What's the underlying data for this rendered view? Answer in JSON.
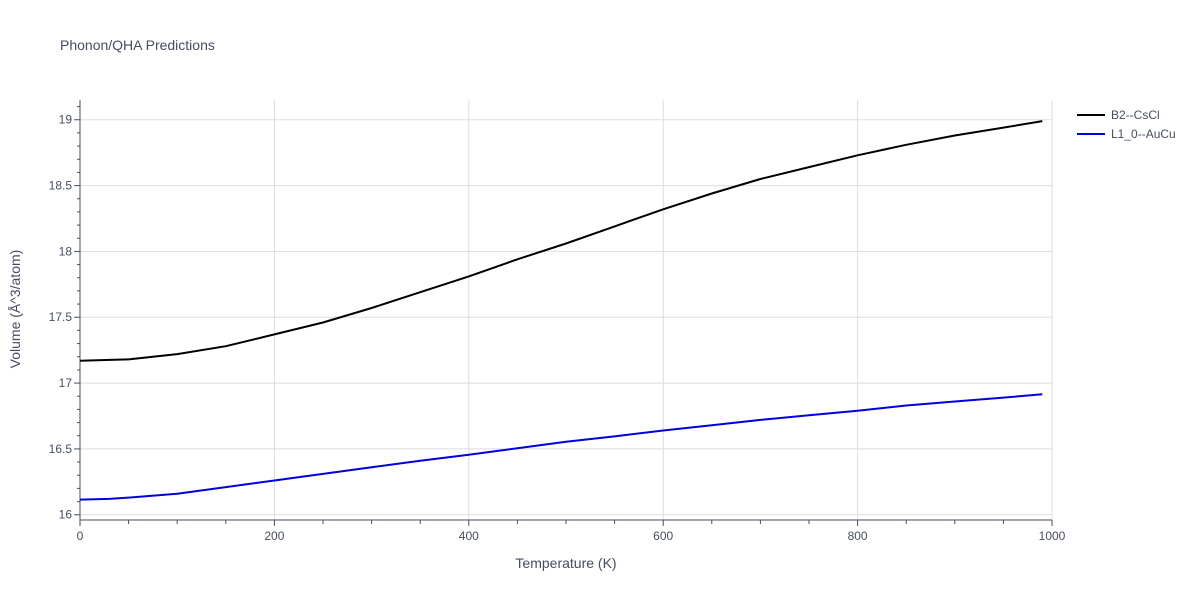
{
  "chart_data": {
    "type": "line",
    "title": "Phonon/QHA Predictions",
    "xlabel": "Temperature (K)",
    "ylabel": "Volume (Å^3/atom)",
    "xlim": [
      0,
      1000
    ],
    "ylim": [
      15.96,
      19.15
    ],
    "x_ticks": [
      0,
      200,
      400,
      600,
      800,
      1000
    ],
    "y_ticks": [
      16,
      16.5,
      17,
      17.5,
      18,
      18.5,
      19
    ],
    "x_tick_labels": [
      "0",
      "200",
      "400",
      "600",
      "800",
      "1000"
    ],
    "y_tick_labels": [
      "16",
      "16.5",
      "17",
      "17.5",
      "18",
      "18.5",
      "19"
    ],
    "grid": true,
    "legend_position": "top-right",
    "series": [
      {
        "name": "B2--CsCl",
        "color": "#000000",
        "x": [
          0,
          50,
          100,
          150,
          200,
          250,
          300,
          350,
          400,
          450,
          500,
          550,
          600,
          650,
          700,
          750,
          800,
          850,
          900,
          950,
          990
        ],
        "y": [
          17.17,
          17.18,
          17.22,
          17.28,
          17.37,
          17.46,
          17.57,
          17.69,
          17.81,
          17.94,
          18.06,
          18.19,
          18.32,
          18.44,
          18.55,
          18.64,
          18.73,
          18.81,
          18.88,
          18.94,
          18.99
        ]
      },
      {
        "name": "L1_0--AuCu",
        "color": "#0000dd",
        "x": [
          0,
          30,
          50,
          100,
          150,
          200,
          250,
          300,
          350,
          400,
          450,
          500,
          550,
          600,
          650,
          700,
          750,
          800,
          850,
          900,
          950,
          990
        ],
        "y": [
          16.115,
          16.12,
          16.13,
          16.16,
          16.21,
          16.26,
          16.31,
          16.36,
          16.41,
          16.455,
          16.505,
          16.555,
          16.595,
          16.64,
          16.68,
          16.72,
          16.755,
          16.79,
          16.83,
          16.86,
          16.89,
          16.915
        ]
      }
    ]
  }
}
